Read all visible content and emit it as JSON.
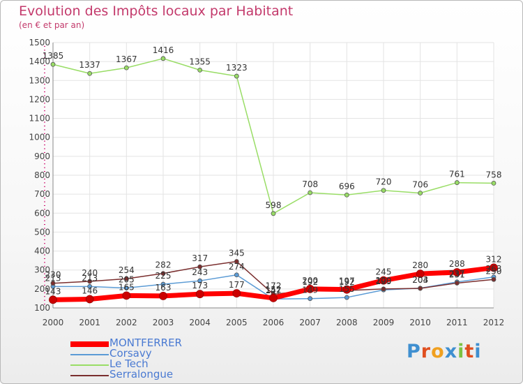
{
  "header": {
    "title": "Evolution des Impôts locaux par Habitant",
    "subtitle": "(en € et par an)"
  },
  "logo": {
    "text": "Proxiti",
    "letter_colors": [
      "#3f8fd0",
      "#e04f1f",
      "#f0a020",
      "#3f8fd0",
      "#7cc242",
      "#e04f1f",
      "#3f8fd0"
    ]
  },
  "chart_data": {
    "type": "line",
    "title": "Evolution des Impôts locaux par Habitant",
    "subtitle": "(en € et par an)",
    "xlabel": "",
    "ylabel": "",
    "x": [
      "2000",
      "2001",
      "2002",
      "2003",
      "2004",
      "2005",
      "2006",
      "2007",
      "2008",
      "2009",
      "2010",
      "2011",
      "2012"
    ],
    "yticks": [
      "100",
      "200",
      "300",
      "400",
      "500",
      "600",
      "700",
      "800",
      "900",
      "1000",
      "1100",
      "1200",
      "1300",
      "1400",
      "1500"
    ],
    "ylim": [
      100,
      1500
    ],
    "grid": true,
    "legend_position": "bottom-left",
    "series": [
      {
        "name": "MONTFERRER",
        "color": "#ff0000",
        "values": [
          143,
          146,
          165,
          163,
          173,
          177,
          152,
          200,
          197,
          245,
          280,
          288,
          312
        ],
        "labels": [
          "143",
          "146",
          "165",
          "163",
          "173",
          "177",
          "152",
          "200",
          "197",
          "245",
          "280",
          "288",
          "312"
        ]
      },
      {
        "name": "Corsavy",
        "color": "#5b9bd5",
        "values": [
          213,
          213,
          205,
          225,
          243,
          274,
          147,
          149,
          155,
          195,
          204,
          237,
          263
        ],
        "labels": [
          "213",
          "213",
          "205",
          "225",
          "243",
          "274",
          "147",
          "149",
          "155",
          "195",
          "204",
          "237",
          "263"
        ]
      },
      {
        "name": "Le Tech",
        "color": "#99dd66",
        "values": [
          1385,
          1337,
          1367,
          1416,
          1355,
          1323,
          598,
          708,
          696,
          720,
          706,
          761,
          758
        ],
        "labels": [
          "1385",
          "1337",
          "1367",
          "1416",
          "1355",
          "1323",
          "598",
          "708",
          "696",
          "720",
          "706",
          "761",
          "758"
        ]
      },
      {
        "name": "Serralongue",
        "color": "#7a2e2e",
        "values": [
          230,
          240,
          254,
          282,
          317,
          345,
          172,
          192,
          192,
          200,
          203,
          231,
          250
        ],
        "labels": [
          "230",
          "240",
          "254",
          "282",
          "317",
          "345",
          "172",
          "192",
          "192",
          "200",
          "203",
          "231",
          "250"
        ]
      }
    ]
  }
}
